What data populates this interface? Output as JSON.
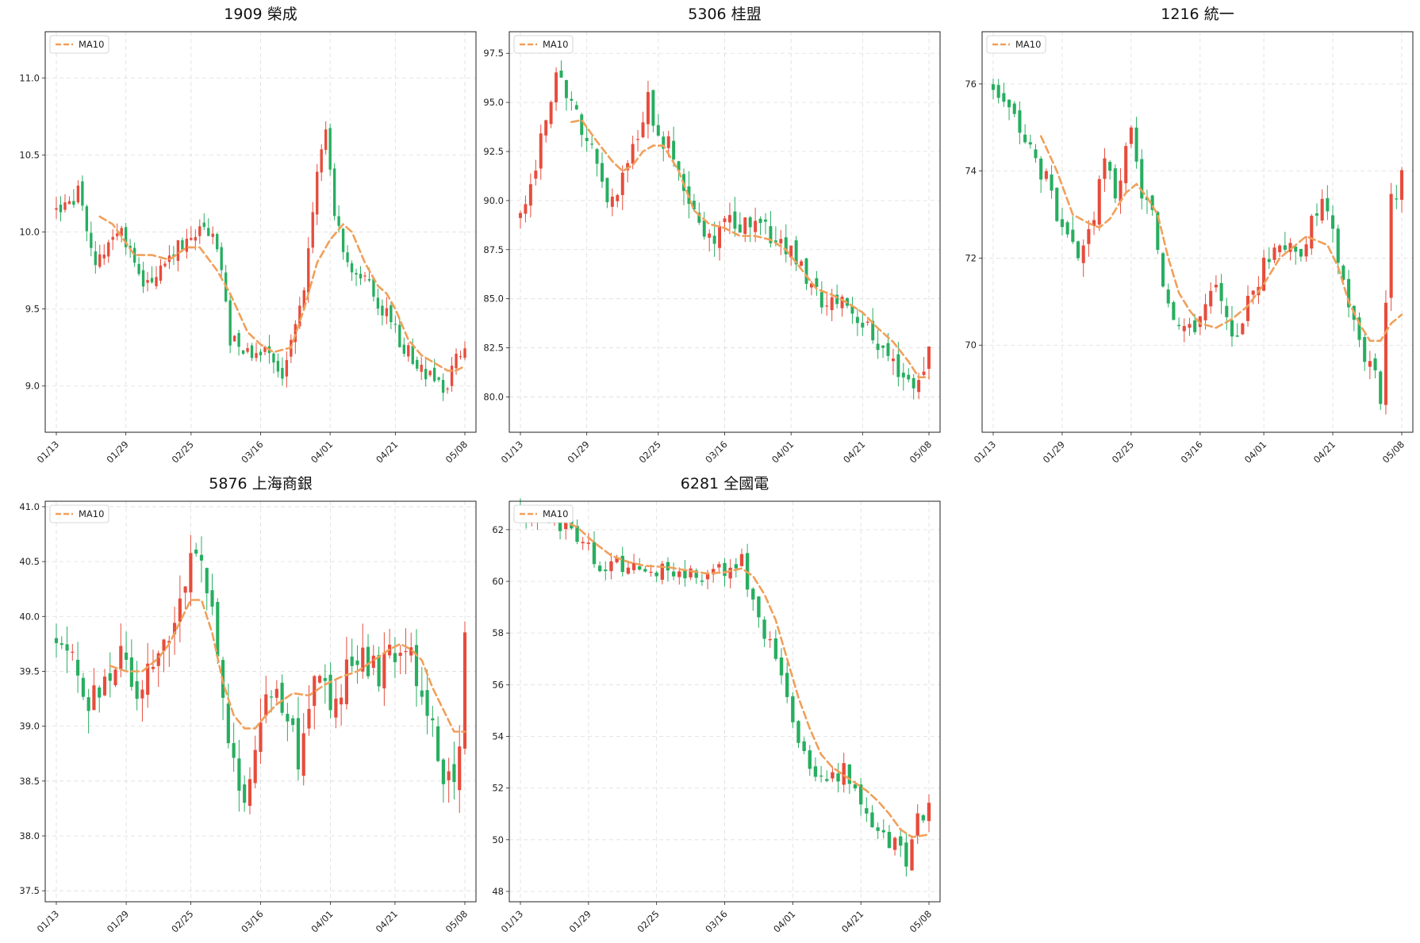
{
  "chart_data": [
    {
      "type": "candlestick",
      "title": "1909 榮成",
      "legend": {
        "label": "MA10",
        "placement": "top-left"
      },
      "grid": true,
      "xticks": [
        "01/13",
        "01/29",
        "02/25",
        "03/16",
        "04/01",
        "04/21",
        "05/08"
      ],
      "yticks": [
        "9.0",
        "9.5",
        "10.0",
        "10.5",
        "11.0"
      ],
      "ylim": [
        8.7,
        11.3
      ],
      "close_start": 10.15,
      "close_path": [
        [
          0,
          10.15
        ],
        [
          5,
          10.25
        ],
        [
          9,
          9.8
        ],
        [
          15,
          10.0
        ],
        [
          20,
          9.6
        ],
        [
          25,
          9.85
        ],
        [
          30,
          9.95
        ],
        [
          34,
          10.05
        ],
        [
          37,
          9.9
        ],
        [
          40,
          9.3
        ],
        [
          44,
          9.2
        ],
        [
          49,
          9.2
        ],
        [
          52,
          9.1
        ],
        [
          57,
          9.6
        ],
        [
          60,
          10.4
        ],
        [
          62,
          10.7
        ],
        [
          64,
          10.15
        ],
        [
          67,
          9.8
        ],
        [
          72,
          9.65
        ],
        [
          76,
          9.45
        ],
        [
          80,
          9.25
        ],
        [
          84,
          9.1
        ],
        [
          88,
          9.05
        ],
        [
          90,
          8.95
        ],
        [
          92,
          9.25
        ],
        [
          94,
          9.2
        ]
      ],
      "ma_line": [
        [
          10,
          10.1
        ],
        [
          13,
          10.05
        ],
        [
          18,
          9.85
        ],
        [
          22,
          9.85
        ],
        [
          26,
          9.82
        ],
        [
          30,
          9.9
        ],
        [
          33,
          9.9
        ],
        [
          37,
          9.75
        ],
        [
          40,
          9.6
        ],
        [
          44,
          9.35
        ],
        [
          47,
          9.27
        ],
        [
          50,
          9.22
        ],
        [
          54,
          9.25
        ],
        [
          57,
          9.5
        ],
        [
          60,
          9.8
        ],
        [
          63,
          9.95
        ],
        [
          66,
          10.05
        ],
        [
          68,
          10.0
        ],
        [
          71,
          9.8
        ],
        [
          74,
          9.65
        ],
        [
          76,
          9.6
        ],
        [
          78,
          9.5
        ],
        [
          81,
          9.3
        ],
        [
          84,
          9.2
        ],
        [
          87,
          9.15
        ],
        [
          90,
          9.1
        ],
        [
          92,
          9.1
        ],
        [
          94,
          9.13
        ]
      ],
      "seed": 1,
      "vol": 0.07
    },
    {
      "type": "candlestick",
      "title": "5306 桂盟",
      "legend": {
        "label": "MA10",
        "placement": "top-left"
      },
      "grid": true,
      "xticks": [
        "01/13",
        "01/29",
        "02/25",
        "03/16",
        "04/01",
        "04/21",
        "05/08"
      ],
      "yticks": [
        "80.0",
        "82.5",
        "85.0",
        "87.5",
        "90.0",
        "92.5",
        "95.0",
        "97.5"
      ],
      "ylim": [
        78.2,
        98.6
      ],
      "close_start": 89.5,
      "close_path": [
        [
          0,
          89.5
        ],
        [
          3,
          91.5
        ],
        [
          5,
          94.5
        ],
        [
          7,
          96.5
        ],
        [
          9,
          95.0
        ],
        [
          11,
          94.5
        ],
        [
          14,
          92.5
        ],
        [
          16,
          90.5
        ],
        [
          18,
          90.0
        ],
        [
          20,
          91.5
        ],
        [
          23,
          93.5
        ],
        [
          25,
          95.0
        ],
        [
          27,
          93.5
        ],
        [
          30,
          92.5
        ],
        [
          33,
          90.0
        ],
        [
          36,
          88.0
        ],
        [
          39,
          88.5
        ],
        [
          42,
          89.0
        ],
        [
          45,
          88.5
        ],
        [
          48,
          88.5
        ],
        [
          51,
          88.0
        ],
        [
          54,
          87.0
        ],
        [
          57,
          85.5
        ],
        [
          60,
          84.5
        ],
        [
          63,
          85.0
        ],
        [
          66,
          84.0
        ],
        [
          69,
          83.0
        ],
        [
          72,
          82.0
        ],
        [
          75,
          81.0
        ],
        [
          78,
          80.5
        ],
        [
          80,
          82.5
        ]
      ],
      "ma_line": [
        [
          10,
          94.0
        ],
        [
          12,
          94.1
        ],
        [
          15,
          93.0
        ],
        [
          18,
          92.0
        ],
        [
          20,
          91.5
        ],
        [
          22,
          91.8
        ],
        [
          24,
          92.5
        ],
        [
          26,
          92.8
        ],
        [
          28,
          92.8
        ],
        [
          31,
          91.5
        ],
        [
          34,
          89.5
        ],
        [
          37,
          88.8
        ],
        [
          40,
          88.6
        ],
        [
          43,
          88.2
        ],
        [
          46,
          88.2
        ],
        [
          49,
          88.0
        ],
        [
          52,
          87.5
        ],
        [
          55,
          86.5
        ],
        [
          58,
          85.5
        ],
        [
          61,
          85.2
        ],
        [
          64,
          84.8
        ],
        [
          67,
          84.3
        ],
        [
          70,
          83.5
        ],
        [
          73,
          82.8
        ],
        [
          76,
          81.8
        ],
        [
          78,
          81.0
        ],
        [
          80,
          81.0
        ]
      ],
      "seed": 2,
      "vol": 0.7
    },
    {
      "type": "candlestick",
      "title": "1216 統一",
      "legend": {
        "label": "MA10",
        "placement": "top-left"
      },
      "grid": true,
      "xticks": [
        "01/13",
        "01/29",
        "02/25",
        "03/16",
        "04/01",
        "04/21",
        "05/08"
      ],
      "yticks": [
        "70",
        "72",
        "74",
        "76"
      ],
      "ylim": [
        68.0,
        77.2
      ],
      "close_start": 76.0,
      "close_path": [
        [
          0,
          76.0
        ],
        [
          4,
          75.2
        ],
        [
          7,
          74.5
        ],
        [
          10,
          73.8
        ],
        [
          13,
          72.5
        ],
        [
          16,
          72.0
        ],
        [
          19,
          73.0
        ],
        [
          21,
          74.2
        ],
        [
          23,
          73.5
        ],
        [
          26,
          74.8
        ],
        [
          28,
          73.5
        ],
        [
          30,
          73.0
        ],
        [
          32,
          71.5
        ],
        [
          34,
          70.8
        ],
        [
          37,
          70.3
        ],
        [
          40,
          70.9
        ],
        [
          42,
          71.3
        ],
        [
          45,
          70.0
        ],
        [
          48,
          71.0
        ],
        [
          51,
          71.8
        ],
        [
          54,
          72.5
        ],
        [
          57,
          72.0
        ],
        [
          60,
          72.8
        ],
        [
          62,
          73.3
        ],
        [
          64,
          72.5
        ],
        [
          66,
          71.5
        ],
        [
          68,
          70.5
        ],
        [
          70,
          69.8
        ],
        [
          72,
          69.5
        ],
        [
          73,
          68.8
        ],
        [
          75,
          73.3
        ],
        [
          77,
          73.8
        ]
      ],
      "ma_line": [
        [
          9,
          74.8
        ],
        [
          12,
          74.0
        ],
        [
          15,
          73.0
        ],
        [
          18,
          72.8
        ],
        [
          20,
          72.7
        ],
        [
          22,
          72.9
        ],
        [
          25,
          73.5
        ],
        [
          27,
          73.7
        ],
        [
          29,
          73.4
        ],
        [
          31,
          73.0
        ],
        [
          33,
          72.0
        ],
        [
          35,
          71.2
        ],
        [
          37,
          70.8
        ],
        [
          39,
          70.5
        ],
        [
          42,
          70.4
        ],
        [
          45,
          70.6
        ],
        [
          48,
          70.9
        ],
        [
          51,
          71.4
        ],
        [
          54,
          72.0
        ],
        [
          57,
          72.3
        ],
        [
          59,
          72.5
        ],
        [
          61,
          72.4
        ],
        [
          63,
          72.3
        ],
        [
          65,
          71.8
        ],
        [
          67,
          71.0
        ],
        [
          69,
          70.5
        ],
        [
          71,
          70.1
        ],
        [
          73,
          70.1
        ],
        [
          75,
          70.5
        ],
        [
          77,
          70.7
        ]
      ],
      "seed": 3,
      "vol": 0.3
    },
    {
      "type": "candlestick",
      "title": "5876 上海商銀",
      "legend": {
        "label": "MA10",
        "placement": "top-left"
      },
      "grid": true,
      "xticks": [
        "01/13",
        "01/29",
        "02/25",
        "03/16",
        "04/01",
        "04/21",
        "05/08"
      ],
      "yticks": [
        "37.5",
        "38.0",
        "38.5",
        "39.0",
        "39.5",
        "40.0",
        "40.5",
        "41.0"
      ],
      "ylim": [
        37.4,
        41.05
      ],
      "close_start": 39.9,
      "close_path": [
        [
          0,
          39.9
        ],
        [
          3,
          39.6
        ],
        [
          6,
          39.1
        ],
        [
          9,
          39.5
        ],
        [
          12,
          39.7
        ],
        [
          15,
          39.4
        ],
        [
          18,
          39.6
        ],
        [
          21,
          39.9
        ],
        [
          24,
          40.4
        ],
        [
          26,
          40.5
        ],
        [
          29,
          40.1
        ],
        [
          31,
          39.3
        ],
        [
          33,
          38.6
        ],
        [
          35,
          38.3
        ],
        [
          37,
          38.9
        ],
        [
          39,
          39.4
        ],
        [
          42,
          39.2
        ],
        [
          45,
          38.7
        ],
        [
          48,
          39.4
        ],
        [
          51,
          39.2
        ],
        [
          54,
          39.5
        ],
        [
          57,
          39.6
        ],
        [
          60,
          39.5
        ],
        [
          63,
          39.7
        ],
        [
          65,
          39.8
        ],
        [
          67,
          39.5
        ],
        [
          70,
          38.9
        ],
        [
          72,
          38.6
        ],
        [
          74,
          38.5
        ],
        [
          75,
          38.9
        ],
        [
          76,
          39.8
        ]
      ],
      "ma_line": [
        [
          10,
          39.55
        ],
        [
          13,
          39.5
        ],
        [
          16,
          39.5
        ],
        [
          19,
          39.62
        ],
        [
          21,
          39.75
        ],
        [
          23,
          39.95
        ],
        [
          25,
          40.15
        ],
        [
          27,
          40.15
        ],
        [
          29,
          39.85
        ],
        [
          31,
          39.4
        ],
        [
          33,
          39.1
        ],
        [
          35,
          38.98
        ],
        [
          37,
          38.98
        ],
        [
          39,
          39.1
        ],
        [
          41,
          39.2
        ],
        [
          44,
          39.3
        ],
        [
          47,
          39.28
        ],
        [
          50,
          39.38
        ],
        [
          53,
          39.45
        ],
        [
          56,
          39.5
        ],
        [
          59,
          39.6
        ],
        [
          62,
          39.7
        ],
        [
          64,
          39.75
        ],
        [
          66,
          39.7
        ],
        [
          68,
          39.6
        ],
        [
          70,
          39.35
        ],
        [
          72,
          39.15
        ],
        [
          74,
          38.95
        ],
        [
          76,
          38.95
        ]
      ],
      "seed": 4,
      "vol": 0.2
    },
    {
      "type": "candlestick",
      "title": "6281 全國電",
      "legend": {
        "label": "MA10",
        "placement": "top-left"
      },
      "grid": true,
      "xticks": [
        "01/13",
        "01/29",
        "02/25",
        "03/16",
        "04/01",
        "04/21",
        "05/08"
      ],
      "yticks": [
        "48",
        "50",
        "52",
        "54",
        "56",
        "58",
        "60",
        "62"
      ],
      "ylim": [
        47.6,
        63.1
      ],
      "close_start": 62.6,
      "close_path": [
        [
          0,
          62.6
        ],
        [
          4,
          62.4
        ],
        [
          8,
          62.1
        ],
        [
          11,
          61.6
        ],
        [
          14,
          60.6
        ],
        [
          17,
          60.7
        ],
        [
          20,
          60.4
        ],
        [
          24,
          60.5
        ],
        [
          28,
          60.3
        ],
        [
          32,
          60.2
        ],
        [
          35,
          60.4
        ],
        [
          39,
          60.8
        ],
        [
          42,
          58.4
        ],
        [
          45,
          57.0
        ],
        [
          48,
          54.5
        ],
        [
          51,
          52.6
        ],
        [
          54,
          52.2
        ],
        [
          57,
          52.7
        ],
        [
          60,
          51.5
        ],
        [
          63,
          50.4
        ],
        [
          66,
          49.8
        ],
        [
          68,
          49.2
        ],
        [
          70,
          50.8
        ],
        [
          72,
          51.2
        ]
      ],
      "ma_line": [
        [
          7,
          62.4
        ],
        [
          10,
          62.1
        ],
        [
          13,
          61.5
        ],
        [
          16,
          61.0
        ],
        [
          19,
          60.75
        ],
        [
          22,
          60.6
        ],
        [
          26,
          60.55
        ],
        [
          30,
          60.4
        ],
        [
          33,
          60.3
        ],
        [
          36,
          60.35
        ],
        [
          39,
          60.5
        ],
        [
          41,
          60.2
        ],
        [
          43,
          59.5
        ],
        [
          45,
          58.5
        ],
        [
          47,
          57.0
        ],
        [
          49,
          55.5
        ],
        [
          51,
          54.3
        ],
        [
          53,
          53.3
        ],
        [
          55,
          52.8
        ],
        [
          57,
          52.5
        ],
        [
          59,
          52.2
        ],
        [
          61,
          51.9
        ],
        [
          63,
          51.5
        ],
        [
          65,
          51.0
        ],
        [
          67,
          50.4
        ],
        [
          69,
          50.1
        ],
        [
          72,
          50.2
        ]
      ],
      "seed": 5,
      "vol": 0.4
    }
  ],
  "colors": {
    "up": "#e74c3c",
    "down": "#27ae60",
    "ma": "#f0a05a",
    "grid": "#dddddd",
    "axis": "#222222"
  }
}
